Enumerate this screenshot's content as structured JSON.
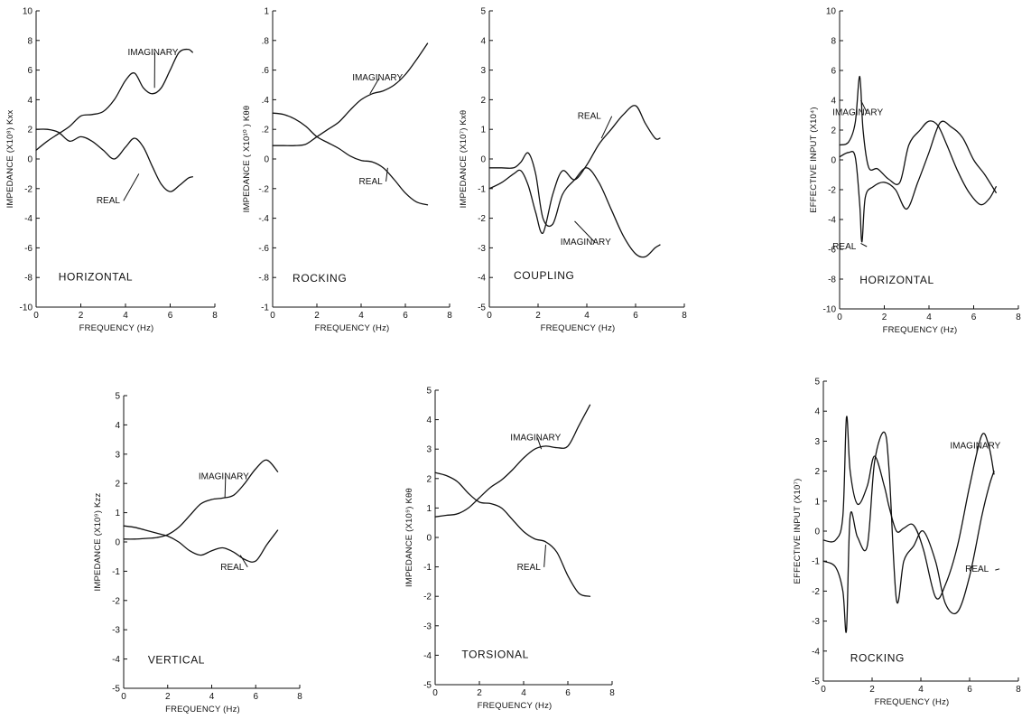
{
  "figure": {
    "ink_color": "#111111",
    "background": "#ffffff"
  },
  "chart_data": [
    {
      "type": "line",
      "panel_label": "HORIZONTAL",
      "xlabel": "FREQUENCY (Hz)",
      "ylabel": "IMPEDANCE (X10⁸) Kxx",
      "xlim": [
        0,
        8
      ],
      "ylim": [
        -10,
        10
      ],
      "xticks": [
        0,
        2,
        4,
        6,
        8
      ],
      "xtick_labels": [
        "0",
        "2",
        "4",
        "6",
        "8"
      ],
      "yticks": [
        -10,
        -8,
        -6,
        -4,
        -2,
        0,
        2,
        4,
        6,
        8,
        10
      ],
      "ytick_labels": [
        "-10",
        "-8",
        "-6",
        "-4",
        "-2",
        "0",
        "2",
        "4",
        "6",
        "8",
        "10"
      ],
      "grid": false,
      "series": [
        {
          "name": "IMAGINARY",
          "x": [
            0,
            0.5,
            1,
            1.5,
            2,
            2.5,
            3,
            3.5,
            4,
            4.4,
            4.8,
            5.2,
            5.6,
            6,
            6.4,
            6.8,
            7
          ],
          "y": [
            0.6,
            1.2,
            1.7,
            2.2,
            2.9,
            3.0,
            3.2,
            4.0,
            5.3,
            5.8,
            4.8,
            4.4,
            4.8,
            6.0,
            7.2,
            7.4,
            7.2
          ]
        },
        {
          "name": "REAL",
          "x": [
            0,
            0.5,
            1,
            1.5,
            2,
            2.5,
            3,
            3.5,
            4,
            4.4,
            4.8,
            5.2,
            5.6,
            6,
            6.4,
            6.8,
            7
          ],
          "y": [
            2.0,
            2.0,
            1.8,
            1.2,
            1.5,
            1.2,
            0.6,
            0.0,
            0.8,
            1.4,
            0.8,
            -0.5,
            -1.7,
            -2.2,
            -1.8,
            -1.3,
            -1.2
          ]
        }
      ]
    },
    {
      "type": "line",
      "panel_label": "ROCKING",
      "xlabel": "FREQUENCY (Hz)",
      "ylabel": "IMPEDANCE ( X10¹⁰ ) Kθθ",
      "xlim": [
        0,
        8
      ],
      "ylim": [
        -1,
        1
      ],
      "xticks": [
        0,
        2,
        4,
        6,
        8
      ],
      "xtick_labels": [
        "0",
        "2",
        "4",
        "6",
        "8"
      ],
      "yticks": [
        -1,
        -0.8,
        -0.6,
        -0.4,
        -0.2,
        0,
        0.2,
        0.4,
        0.6,
        0.8,
        1
      ],
      "ytick_labels": [
        "-1",
        "-.8",
        "-.6",
        "-.4",
        "-.2",
        "0",
        ".2",
        ".4",
        ".6",
        ".8",
        "1"
      ],
      "grid": false,
      "series": [
        {
          "name": "IMAGINARY",
          "x": [
            0,
            0.5,
            1,
            1.5,
            2,
            2.5,
            3,
            3.5,
            4,
            4.5,
            5,
            5.5,
            6,
            6.5,
            7
          ],
          "y": [
            0.09,
            0.09,
            0.09,
            0.1,
            0.15,
            0.2,
            0.25,
            0.33,
            0.4,
            0.44,
            0.46,
            0.5,
            0.57,
            0.67,
            0.78
          ]
        },
        {
          "name": "REAL",
          "x": [
            0,
            0.5,
            1,
            1.5,
            2,
            2.5,
            3,
            3.5,
            4,
            4.5,
            5,
            5.5,
            6,
            6.5,
            7
          ],
          "y": [
            0.31,
            0.3,
            0.27,
            0.22,
            0.15,
            0.11,
            0.07,
            0.02,
            -0.01,
            -0.02,
            -0.06,
            -0.14,
            -0.23,
            -0.29,
            -0.31
          ]
        }
      ]
    },
    {
      "type": "line",
      "panel_label": "COUPLING",
      "xlabel": "FREQUENCY (Hz)",
      "ylabel": "IMPEDANCE (X10⁷) Kxθ",
      "xlim": [
        0,
        8
      ],
      "ylim": [
        -5,
        5
      ],
      "xticks": [
        0,
        2,
        4,
        6,
        8
      ],
      "xtick_labels": [
        "0",
        "2",
        "4",
        "6",
        "8"
      ],
      "yticks": [
        -5,
        -4,
        -3,
        -2,
        -1,
        0,
        1,
        2,
        3,
        4,
        5
      ],
      "ytick_labels": [
        "-5",
        "-4",
        "-3",
        "-2",
        "-1",
        "0",
        "1",
        "2",
        "3",
        "4",
        "5"
      ],
      "grid": false,
      "series": [
        {
          "name": "IMAGINARY",
          "x": [
            0,
            0.5,
            1,
            1.3,
            1.6,
            1.9,
            2.2,
            2.6,
            3,
            3.5,
            4,
            4.5,
            5,
            5.5,
            6,
            6.4,
            6.8,
            7
          ],
          "y": [
            -0.3,
            -0.3,
            -0.3,
            -0.1,
            0.2,
            -0.5,
            -2.0,
            -2.2,
            -1.2,
            -0.7,
            -0.3,
            -0.8,
            -1.7,
            -2.6,
            -3.2,
            -3.3,
            -3.0,
            -2.9
          ]
        },
        {
          "name": "REAL",
          "x": [
            0,
            0.5,
            1,
            1.3,
            1.6,
            1.9,
            2.2,
            2.6,
            3,
            3.5,
            4,
            4.5,
            5,
            5.5,
            6,
            6.4,
            6.8,
            7
          ],
          "y": [
            -1.0,
            -0.8,
            -0.5,
            -0.4,
            -0.9,
            -1.8,
            -2.5,
            -1.2,
            -0.4,
            -0.7,
            -0.2,
            0.5,
            1.0,
            1.5,
            1.8,
            1.2,
            0.7,
            0.7
          ]
        }
      ]
    },
    {
      "type": "line",
      "panel_label": "HORIZONTAL",
      "xlabel": "FREQUENCY (Hz)",
      "ylabel": "EFFECTIVE INPUT (X10⁴)",
      "xlim": [
        0,
        8
      ],
      "ylim": [
        -10,
        10
      ],
      "xticks": [
        0,
        2,
        4,
        6,
        8
      ],
      "xtick_labels": [
        "0",
        "2",
        "4",
        "6",
        "8"
      ],
      "yticks": [
        -10,
        -8,
        -6,
        -4,
        -2,
        0,
        2,
        4,
        6,
        8,
        10
      ],
      "ytick_labels": [
        "-10",
        "-8",
        "-6",
        "-4",
        "-2",
        "0",
        "2",
        "4",
        "6",
        "8",
        "10"
      ],
      "grid": false,
      "series": [
        {
          "name": "REAL",
          "x": [
            0,
            0.4,
            0.7,
            0.9,
            1.05,
            1.3,
            1.7,
            2.2,
            2.7,
            3.1,
            3.6,
            4.0,
            4.4,
            4.8,
            5.3,
            5.8,
            6.3,
            6.7,
            7
          ],
          "y": [
            1.0,
            1.2,
            2.5,
            5.6,
            2.0,
            -0.5,
            -0.6,
            -1.3,
            -1.5,
            1.0,
            2.0,
            2.6,
            2.3,
            1.0,
            -0.8,
            -2.2,
            -3.0,
            -2.6,
            -1.8
          ]
        },
        {
          "name": "IMAGINARY",
          "x": [
            0,
            0.4,
            0.7,
            0.9,
            1.0,
            1.15,
            1.5,
            2.0,
            2.5,
            3.0,
            3.5,
            4.0,
            4.5,
            5.0,
            5.5,
            6.0,
            6.5,
            7
          ],
          "y": [
            0.2,
            0.5,
            0.2,
            -3.0,
            -5.5,
            -2.5,
            -1.8,
            -1.5,
            -2.0,
            -3.3,
            -1.5,
            0.5,
            2.5,
            2.2,
            1.5,
            0.0,
            -1.0,
            -2.2
          ]
        }
      ]
    },
    {
      "type": "line",
      "panel_label": "VERTICAL",
      "xlabel": "FREQUENCY (Hz)",
      "ylabel": "IMPEDANCE (X10⁹) Kzz",
      "xlim": [
        0,
        8
      ],
      "ylim": [
        -5,
        5
      ],
      "xticks": [
        0,
        2,
        4,
        6,
        8
      ],
      "xtick_labels": [
        "0",
        "2",
        "4",
        "6",
        "8"
      ],
      "yticks": [
        -5,
        -4,
        -3,
        -2,
        -1,
        0,
        1,
        2,
        3,
        4,
        5
      ],
      "ytick_labels": [
        "-5",
        "-4",
        "-3",
        "-2",
        "-1",
        "0",
        "1",
        "2",
        "3",
        "4",
        "5"
      ],
      "grid": false,
      "series": [
        {
          "name": "IMAGINARY",
          "x": [
            0,
            0.5,
            1,
            1.5,
            2,
            2.5,
            3,
            3.5,
            4,
            4.5,
            5,
            5.5,
            6,
            6.5,
            7
          ],
          "y": [
            0.1,
            0.1,
            0.12,
            0.15,
            0.25,
            0.5,
            0.9,
            1.3,
            1.45,
            1.5,
            1.6,
            2.0,
            2.5,
            2.8,
            2.4
          ]
        },
        {
          "name": "REAL",
          "x": [
            0,
            0.5,
            1,
            1.5,
            2,
            2.5,
            3,
            3.5,
            4,
            4.5,
            5,
            5.5,
            6,
            6.5,
            7
          ],
          "y": [
            0.55,
            0.5,
            0.4,
            0.3,
            0.2,
            0.0,
            -0.3,
            -0.45,
            -0.3,
            -0.2,
            -0.35,
            -0.6,
            -0.65,
            -0.1,
            0.4
          ]
        }
      ]
    },
    {
      "type": "line",
      "panel_label": "TORSIONAL",
      "xlabel": "FREQUENCY (Hz)",
      "ylabel": "IMPEDANCE (X10⁹) Kθθ",
      "xlim": [
        0,
        8
      ],
      "ylim": [
        -5,
        5
      ],
      "xticks": [
        0,
        2,
        4,
        6,
        8
      ],
      "xtick_labels": [
        "0",
        "2",
        "4",
        "6",
        "8"
      ],
      "yticks": [
        -5,
        -4,
        -3,
        -2,
        -1,
        0,
        1,
        2,
        3,
        4,
        5
      ],
      "ytick_labels": [
        "-5",
        "-4",
        "-3",
        "-2",
        "-1",
        "0",
        "1",
        "2",
        "3",
        "4",
        "5"
      ],
      "grid": false,
      "series": [
        {
          "name": "IMAGINARY",
          "x": [
            0,
            0.5,
            1,
            1.5,
            2,
            2.5,
            3,
            3.5,
            4,
            4.5,
            5,
            5.5,
            6,
            6.5,
            7
          ],
          "y": [
            0.7,
            0.75,
            0.8,
            1.0,
            1.35,
            1.7,
            1.95,
            2.3,
            2.7,
            3.0,
            3.1,
            3.05,
            3.1,
            3.8,
            4.5
          ]
        },
        {
          "name": "REAL",
          "x": [
            0,
            0.5,
            1,
            1.5,
            2,
            2.5,
            3,
            3.5,
            4,
            4.5,
            5,
            5.5,
            6,
            6.5,
            7
          ],
          "y": [
            2.2,
            2.1,
            1.9,
            1.5,
            1.2,
            1.15,
            1.0,
            0.6,
            0.2,
            -0.05,
            -0.15,
            -0.5,
            -1.3,
            -1.9,
            -2.0
          ]
        }
      ]
    },
    {
      "type": "line",
      "panel_label": "ROCKING",
      "xlabel": "FREQUENCY (Hz)",
      "ylabel": "EFFECTIVE INPUT (X10⁷)",
      "xlim": [
        0,
        8
      ],
      "ylim": [
        -5,
        5
      ],
      "xticks": [
        0,
        2,
        4,
        6,
        8
      ],
      "xtick_labels": [
        "0",
        "2",
        "4",
        "6",
        "8"
      ],
      "yticks": [
        -5,
        -4,
        -3,
        -2,
        -1,
        0,
        1,
        2,
        3,
        4,
        5
      ],
      "ytick_labels": [
        "-5",
        "-4",
        "-3",
        "-2",
        "-1",
        "0",
        "1",
        "2",
        "3",
        "4",
        "5"
      ],
      "grid": false,
      "series": [
        {
          "name": "IMAGINARY",
          "x": [
            0,
            0.5,
            0.8,
            0.95,
            1.1,
            1.4,
            1.8,
            2.1,
            2.5,
            2.7,
            3.0,
            3.3,
            3.7,
            4.1,
            4.6,
            5.0,
            5.5,
            6.0,
            6.5,
            6.8,
            7.0
          ],
          "y": [
            -0.3,
            -0.3,
            0.5,
            3.8,
            2.0,
            0.9,
            1.5,
            2.5,
            1.5,
            0.8,
            0.0,
            0.1,
            0.2,
            -0.6,
            -2.2,
            -1.8,
            -0.5,
            1.5,
            3.2,
            2.8,
            1.9
          ]
        },
        {
          "name": "REAL",
          "x": [
            0,
            0.5,
            0.8,
            0.95,
            1.1,
            1.4,
            1.8,
            2.1,
            2.5,
            2.7,
            3.0,
            3.3,
            3.7,
            4.1,
            4.6,
            5.0,
            5.5,
            6.0,
            6.5,
            6.8,
            7.0
          ],
          "y": [
            -1.0,
            -1.2,
            -2.0,
            -3.3,
            0.5,
            -0.2,
            -0.5,
            2.3,
            3.3,
            2.0,
            -2.3,
            -1.0,
            -0.5,
            0.0,
            -1.0,
            -2.4,
            -2.7,
            -1.5,
            0.5,
            1.5,
            2.0
          ]
        }
      ]
    }
  ]
}
